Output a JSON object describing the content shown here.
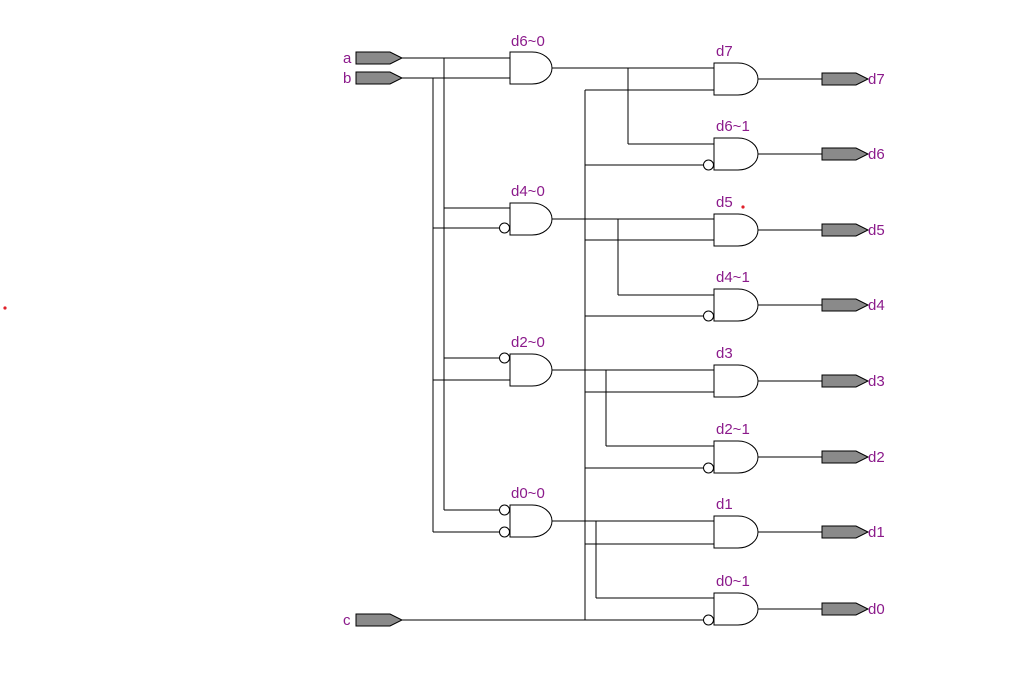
{
  "inputs": {
    "a": "a",
    "b": "b",
    "c": "c"
  },
  "stage1_gates": {
    "g1": "d6~0",
    "g2": "d4~0",
    "g3": "d2~0",
    "g4": "d0~0"
  },
  "stage2_gates": {
    "g1": "d7",
    "g2": "d6~1",
    "g3": "d5",
    "g4": "d4~1",
    "g5": "d3",
    "g6": "d2~1",
    "g7": "d1",
    "g8": "d0~1"
  },
  "outputs": {
    "o1": "d7",
    "o2": "d6",
    "o3": "d5",
    "o4": "d4",
    "o5": "d3",
    "o6": "d2",
    "o7": "d1",
    "o8": "d0"
  },
  "colors": {
    "label": "#8b1a8b",
    "port_fill": "#8a8a8a",
    "marker": "#e0202a"
  }
}
